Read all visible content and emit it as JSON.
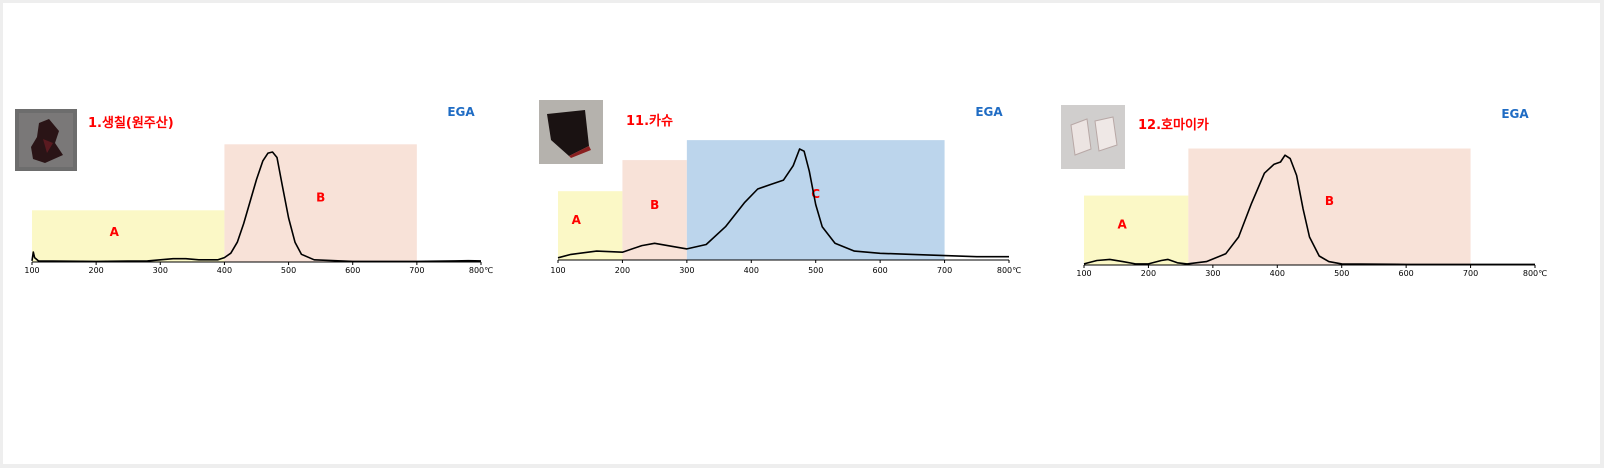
{
  "colors": {
    "region_A": "#fbf8c6",
    "region_B": "#f8e2d8",
    "region_C": "#bcd5ec",
    "title": "#ff0000",
    "region_label": "#ff0000",
    "ega": "#1f6cc4",
    "curve": "#000000"
  },
  "chart_data": [
    {
      "type": "line",
      "title": "1.생칠(원주산)",
      "annotation": "EGA",
      "sample_photo": "dark-lacquer-chip",
      "x_ticks": [
        "100",
        "200",
        "300",
        "400",
        "500",
        "600",
        "700",
        "800℃"
      ],
      "xlim": [
        100,
        800
      ],
      "ylim": [
        0,
        1
      ],
      "regions": [
        {
          "label": "A",
          "x_start": 100,
          "x_end": 400,
          "height": 0.47,
          "color": "region_A"
        },
        {
          "label": "B",
          "x_start": 400,
          "x_end": 700,
          "height": 1.07,
          "color": "region_B"
        }
      ],
      "series": [
        {
          "values": [
            [
              100,
              0.01
            ],
            [
              102,
              0.09
            ],
            [
              104,
              0.04
            ],
            [
              110,
              0.01
            ],
            [
              200,
              0.005
            ],
            [
              280,
              0.01
            ],
            [
              320,
              0.03
            ],
            [
              340,
              0.03
            ],
            [
              360,
              0.02
            ],
            [
              390,
              0.02
            ],
            [
              400,
              0.04
            ],
            [
              410,
              0.08
            ],
            [
              420,
              0.18
            ],
            [
              430,
              0.35
            ],
            [
              440,
              0.55
            ],
            [
              450,
              0.75
            ],
            [
              460,
              0.92
            ],
            [
              468,
              0.99
            ],
            [
              475,
              1.0
            ],
            [
              482,
              0.95
            ],
            [
              490,
              0.7
            ],
            [
              500,
              0.4
            ],
            [
              510,
              0.18
            ],
            [
              520,
              0.07
            ],
            [
              540,
              0.02
            ],
            [
              600,
              0.005
            ],
            [
              700,
              0.005
            ],
            [
              760,
              0.01
            ],
            [
              780,
              0.012
            ],
            [
              800,
              0.01
            ]
          ]
        }
      ]
    },
    {
      "type": "line",
      "title": "11.카슈",
      "annotation": "EGA",
      "sample_photo": "black-lacquer-fragment",
      "x_ticks": [
        "100",
        "200",
        "300",
        "400",
        "500",
        "600",
        "700",
        "800℃"
      ],
      "xlim": [
        100,
        800
      ],
      "ylim": [
        0,
        1
      ],
      "regions": [
        {
          "label": "A",
          "x_start": 100,
          "x_end": 200,
          "height": 0.62,
          "color": "region_A"
        },
        {
          "label": "B",
          "x_start": 200,
          "x_end": 300,
          "height": 0.9,
          "color": "region_B"
        },
        {
          "label": "C",
          "x_start": 300,
          "x_end": 700,
          "height": 1.08,
          "color": "region_C"
        }
      ],
      "series": [
        {
          "values": [
            [
              100,
              0.02
            ],
            [
              120,
              0.05
            ],
            [
              160,
              0.08
            ],
            [
              200,
              0.07
            ],
            [
              230,
              0.13
            ],
            [
              250,
              0.15
            ],
            [
              270,
              0.13
            ],
            [
              300,
              0.1
            ],
            [
              330,
              0.14
            ],
            [
              360,
              0.3
            ],
            [
              390,
              0.52
            ],
            [
              410,
              0.64
            ],
            [
              430,
              0.68
            ],
            [
              450,
              0.72
            ],
            [
              465,
              0.85
            ],
            [
              475,
              1.0
            ],
            [
              482,
              0.98
            ],
            [
              490,
              0.8
            ],
            [
              500,
              0.5
            ],
            [
              510,
              0.3
            ],
            [
              530,
              0.15
            ],
            [
              560,
              0.08
            ],
            [
              600,
              0.06
            ],
            [
              650,
              0.05
            ],
            [
              700,
              0.04
            ],
            [
              750,
              0.03
            ],
            [
              800,
              0.03
            ]
          ]
        }
      ]
    },
    {
      "type": "line",
      "title": "12.호마이카",
      "annotation": "EGA",
      "sample_photo": "transparent-resin-pieces",
      "x_ticks": [
        "100",
        "200",
        "300",
        "400",
        "500",
        "600",
        "700",
        "800℃"
      ],
      "xlim": [
        100,
        800
      ],
      "ylim": [
        0,
        1
      ],
      "regions": [
        {
          "label": "A",
          "x_start": 100,
          "x_end": 262,
          "height": 0.62,
          "color": "region_A"
        },
        {
          "label": "B",
          "x_start": 262,
          "x_end": 700,
          "height": 1.04,
          "color": "region_B"
        }
      ],
      "series": [
        {
          "values": [
            [
              100,
              0.01
            ],
            [
              120,
              0.04
            ],
            [
              140,
              0.05
            ],
            [
              160,
              0.03
            ],
            [
              180,
              0.01
            ],
            [
              200,
              0.01
            ],
            [
              220,
              0.04
            ],
            [
              230,
              0.05
            ],
            [
              245,
              0.02
            ],
            [
              260,
              0.01
            ],
            [
              290,
              0.03
            ],
            [
              320,
              0.1
            ],
            [
              340,
              0.25
            ],
            [
              360,
              0.55
            ],
            [
              380,
              0.82
            ],
            [
              395,
              0.9
            ],
            [
              405,
              0.92
            ],
            [
              412,
              0.98
            ],
            [
              420,
              0.95
            ],
            [
              430,
              0.8
            ],
            [
              440,
              0.5
            ],
            [
              450,
              0.25
            ],
            [
              465,
              0.08
            ],
            [
              480,
              0.03
            ],
            [
              500,
              0.01
            ],
            [
              600,
              0.005
            ],
            [
              700,
              0.005
            ],
            [
              800,
              0.005
            ]
          ]
        }
      ]
    }
  ]
}
